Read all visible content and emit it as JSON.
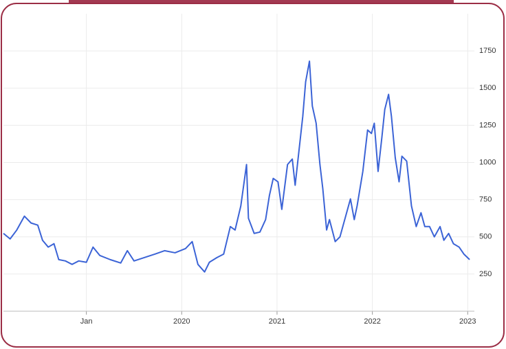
{
  "chart_data": {
    "type": "line",
    "color": "#3b63d6",
    "grid": true,
    "x": [
      2018.13,
      2018.2,
      2018.27,
      2018.35,
      2018.42,
      2018.49,
      2018.54,
      2018.6,
      2018.66,
      2018.71,
      2018.78,
      2018.85,
      2018.92,
      2019.0,
      2019.07,
      2019.14,
      2019.25,
      2019.36,
      2019.43,
      2019.5,
      2019.61,
      2019.72,
      2019.82,
      2019.93,
      2020.04,
      2020.11,
      2020.17,
      2020.24,
      2020.29,
      2020.37,
      2020.44,
      2020.51,
      2020.56,
      2020.62,
      2020.68,
      2020.7,
      2020.76,
      2020.82,
      2020.88,
      2020.92,
      2020.96,
      2021.01,
      2021.05,
      2021.11,
      2021.16,
      2021.19,
      2021.23,
      2021.27,
      2021.3,
      2021.34,
      2021.37,
      2021.41,
      2021.45,
      2021.48,
      2021.52,
      2021.55,
      2021.61,
      2021.66,
      2021.71,
      2021.77,
      2021.81,
      2021.84,
      2021.9,
      2021.95,
      2021.99,
      2022.02,
      2022.06,
      2022.1,
      2022.13,
      2022.17,
      2022.2,
      2022.24,
      2022.28,
      2022.31,
      2022.36,
      2022.41,
      2022.46,
      2022.51,
      2022.55,
      2022.6,
      2022.65,
      2022.71,
      2022.75,
      2022.8,
      2022.85,
      2022.91,
      2022.96,
      2023.02
    ],
    "values": [
      523,
      486,
      546,
      639,
      593,
      579,
      477,
      431,
      454,
      347,
      338,
      315,
      338,
      329,
      431,
      375,
      347,
      324,
      407,
      338,
      361,
      384,
      407,
      393,
      421,
      468,
      315,
      264,
      329,
      361,
      384,
      569,
      546,
      708,
      986,
      625,
      523,
      532,
      616,
      778,
      893,
      870,
      685,
      986,
      1023,
      847,
      1079,
      1310,
      1542,
      1681,
      1380,
      1264,
      986,
      824,
      546,
      616,
      468,
      500,
      616,
      755,
      616,
      708,
      940,
      1218,
      1195,
      1264,
      940,
      1171,
      1356,
      1458,
      1310,
      1032,
      870,
      1042,
      1009,
      708,
      569,
      662,
      569,
      569,
      500,
      569,
      477,
      523,
      454,
      431,
      384,
      347
    ],
    "xlim": [
      2018.13,
      2023.07
    ],
    "xticks": [
      {
        "value": 2019,
        "label": "Jan"
      },
      2020,
      2021,
      2022,
      2023
    ],
    "ylim": [
      0,
      2000
    ],
    "yticks": [
      250,
      500,
      750,
      1000,
      1250,
      1500,
      1750
    ]
  }
}
